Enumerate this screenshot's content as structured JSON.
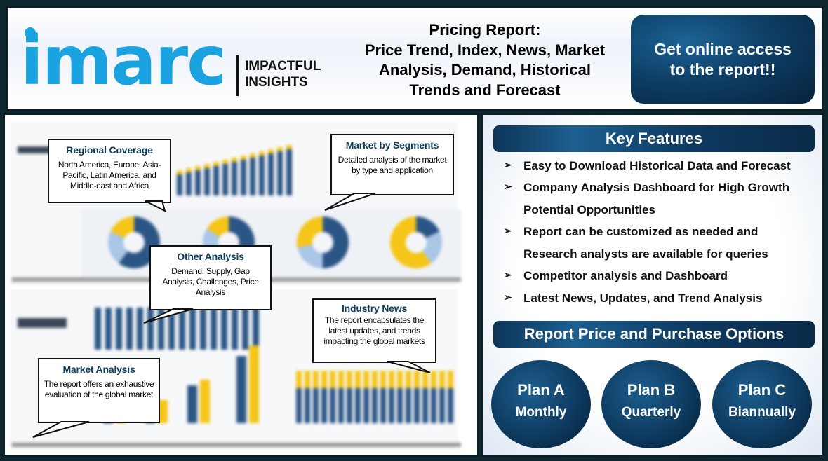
{
  "header": {
    "logo_text": "imarc",
    "tagline_line1": "IMPACTFUL",
    "tagline_line2": "INSIGHTS",
    "title_lines": [
      "Pricing Report:",
      "Price Trend, Index, News, Market",
      "Analysis, Demand, Historical",
      "Trends and Forecast"
    ],
    "cta": "Get online access to the report!!"
  },
  "callouts": {
    "regional": {
      "title": "Regional Coverage",
      "text": "North America, Europe, Asia-Pacific, Latin America, and Middle-east and Africa"
    },
    "segments": {
      "title": "Market by Segments",
      "text": "Detailed analysis of the market by type and application"
    },
    "other": {
      "title": "Other Analysis",
      "text": "Demand, Supply, Gap Analysis, Challenges, Price Analysis"
    },
    "news": {
      "title": "Industry News",
      "text": "The report encapsulates the latest updates, and trends impacting the global markets"
    },
    "market": {
      "title": "Market Analysis",
      "text": "The report offers an exhaustive evaluation of the global market"
    }
  },
  "key_features": {
    "title": "Key Features",
    "bullet_icon": "arrowhead-bullet",
    "items": [
      "Easy to Download Historical Data and Forecast",
      "Company Analysis Dashboard for High Growth",
      "Potential Opportunities",
      "Report can be customized as needed and",
      "Research analysts are available for queries",
      "Competitor analysis and Dashboard",
      "Latest News, Updates, and Trend Analysis"
    ]
  },
  "pricing": {
    "title": "Report Price and Purchase Options",
    "plans": [
      {
        "name": "Plan A",
        "period": "Monthly"
      },
      {
        "name": "Plan B",
        "period": "Quarterly"
      },
      {
        "name": "Plan C",
        "period": "Biannually"
      }
    ]
  },
  "colors": {
    "brand": "#1aa3e0",
    "navy": "#0e3b61",
    "accent_yellow": "#f5c518",
    "frame": "#0f2830"
  }
}
